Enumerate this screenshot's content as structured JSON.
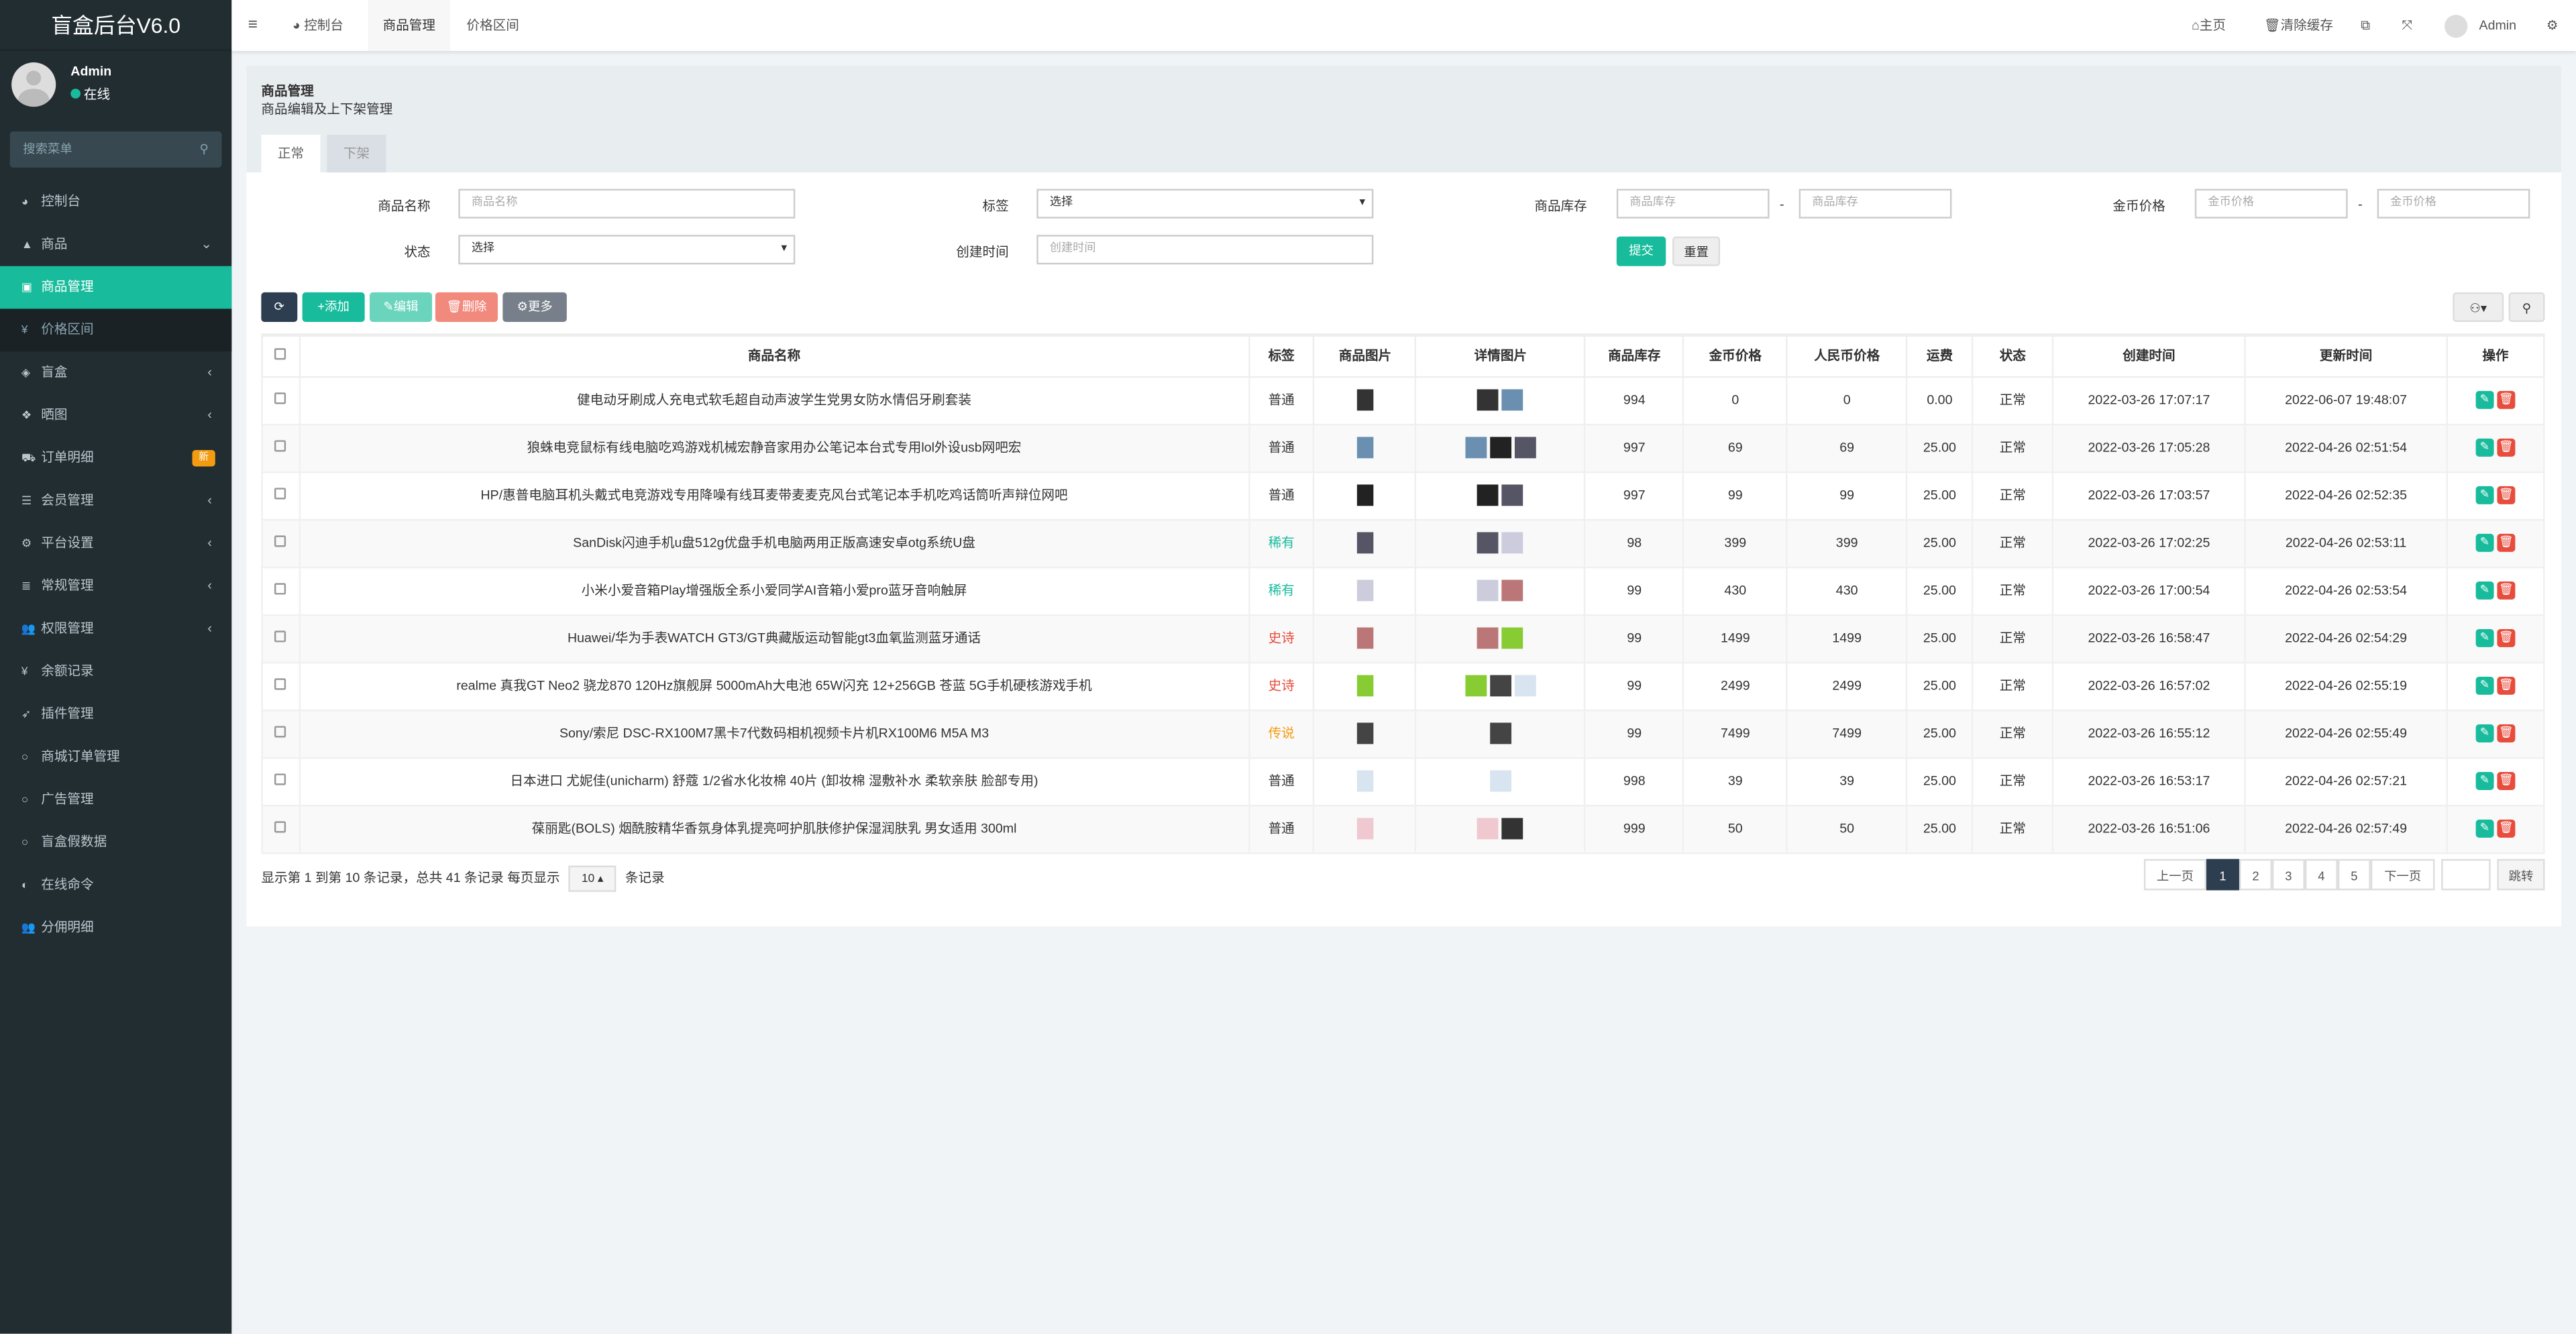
{
  "app": {
    "title": "盲盒后台V6.0",
    "user": "Admin",
    "status": "在线",
    "search_placeholder": "搜索菜单"
  },
  "sidebar": [
    {
      "icon": "dashboard-icon",
      "glyph": "◕",
      "label": "控制台"
    },
    {
      "icon": "shopping-bag-icon",
      "glyph": "▲",
      "label": "商品",
      "arrow": "⌄"
    },
    {
      "icon": "basket-icon",
      "glyph": "▣",
      "label": "商品管理",
      "active": true
    },
    {
      "icon": "yen-icon",
      "glyph": "¥",
      "label": "价格区间",
      "sub": true
    },
    {
      "icon": "cube-icon",
      "glyph": "◈",
      "label": "盲盒",
      "arrow": "‹"
    },
    {
      "icon": "dropbox-icon",
      "glyph": "❖",
      "label": "晒图",
      "arrow": "‹"
    },
    {
      "icon": "cart-icon",
      "glyph": "⛟",
      "label": "订单明细",
      "badge": "新"
    },
    {
      "icon": "list-icon",
      "glyph": "☰",
      "label": "会员管理",
      "arrow": "‹"
    },
    {
      "icon": "gear-icon",
      "glyph": "⚙",
      "label": "平台设置",
      "arrow": "‹"
    },
    {
      "icon": "database-icon",
      "glyph": "≣",
      "label": "常规管理",
      "arrow": "‹"
    },
    {
      "icon": "users-icon",
      "glyph": "👥",
      "label": "权限管理",
      "arrow": "‹"
    },
    {
      "icon": "yen-icon",
      "glyph": "¥",
      "label": "余额记录"
    },
    {
      "icon": "rocket-icon",
      "glyph": "➶",
      "label": "插件管理"
    },
    {
      "icon": "circle-icon",
      "glyph": "○",
      "label": "商城订单管理"
    },
    {
      "icon": "circle-icon",
      "glyph": "○",
      "label": "广告管理"
    },
    {
      "icon": "circle-icon",
      "glyph": "○",
      "label": "盲盒假数据"
    },
    {
      "icon": "adjust-icon",
      "glyph": "◐",
      "label": "在线命令"
    },
    {
      "icon": "users-icon",
      "glyph": "👥",
      "label": "分佣明细"
    }
  ],
  "header": {
    "tabs": [
      "控制台",
      "商品管理",
      "价格区间"
    ],
    "home": "主页",
    "clear_cache": "清除缓存",
    "user": "Admin"
  },
  "panel": {
    "title": "商品管理",
    "subtitle": "商品编辑及上下架管理",
    "tabs": [
      "正常",
      "下架"
    ]
  },
  "filters": {
    "name_label": "商品名称",
    "name_ph": "商品名称",
    "tag_label": "标签",
    "tag_value": "选择",
    "stock_label": "商品库存",
    "stock_ph": "商品库存",
    "gold_label": "金币价格",
    "gold_ph": "金币价格",
    "status_label": "状态",
    "status_value": "选择",
    "created_label": "创建时间",
    "created_ph": "创建时间",
    "submit": "提交",
    "reset": "重置",
    "dash": "-"
  },
  "toolbar": {
    "add": "添加",
    "edit": "编辑",
    "delete": "删除",
    "more": "更多"
  },
  "table": {
    "columns": [
      "商品名称",
      "标签",
      "商品图片",
      "详情图片",
      "商品库存",
      "金币价格",
      "人民币价格",
      "运费",
      "状态",
      "创建时间",
      "更新时间",
      "操作"
    ],
    "rows": [
      [
        "健电动牙刷成人充电式软毛超自动声波学生党男女防水情侣牙刷套装",
        "普通",
        "994",
        "0",
        "0",
        "0.00",
        "正常",
        "2022-03-26 17:07:17",
        "2022-06-07 19:48:07",
        2
      ],
      [
        "狼蛛电竞鼠标有线电脑吃鸡游戏机械宏静音家用办公笔记本台式专用lol外设usb网吧宏",
        "普通",
        "997",
        "69",
        "69",
        "25.00",
        "正常",
        "2022-03-26 17:05:28",
        "2022-04-26 02:51:54",
        3
      ],
      [
        "HP/惠普电脑耳机头戴式电竞游戏专用降噪有线耳麦带麦麦克风台式笔记本手机吃鸡话筒听声辩位网吧",
        "普通",
        "997",
        "99",
        "99",
        "25.00",
        "正常",
        "2022-03-26 17:03:57",
        "2022-04-26 02:52:35",
        2
      ],
      [
        "SanDisk闪迪手机u盘512g优盘手机电脑两用正版高速安卓otg系统U盘",
        "稀有",
        "98",
        "399",
        "399",
        "25.00",
        "正常",
        "2022-03-26 17:02:25",
        "2022-04-26 02:53:11",
        2
      ],
      [
        "小米小爱音箱Play增强版全系小爱同学AI音箱小爱pro蓝牙音响触屏",
        "稀有",
        "99",
        "430",
        "430",
        "25.00",
        "正常",
        "2022-03-26 17:00:54",
        "2022-04-26 02:53:54",
        2
      ],
      [
        "Huawei/华为手表WATCH GT3/GT典藏版运动智能gt3血氧监测蓝牙通话",
        "史诗",
        "99",
        "1499",
        "1499",
        "25.00",
        "正常",
        "2022-03-26 16:58:47",
        "2022-04-26 02:54:29",
        2
      ],
      [
        "realme 真我GT Neo2 骁龙870 120Hz旗舰屏 5000mAh大电池 65W闪充 12+256GB 苍蓝 5G手机硬核游戏手机",
        "史诗",
        "99",
        "2499",
        "2499",
        "25.00",
        "正常",
        "2022-03-26 16:57:02",
        "2022-04-26 02:55:19",
        3
      ],
      [
        "Sony/索尼 DSC-RX100M7黑卡7代数码相机视频卡片机RX100M6 M5A M3",
        "传说",
        "99",
        "7499",
        "7499",
        "25.00",
        "正常",
        "2022-03-26 16:55:12",
        "2022-04-26 02:55:49",
        1
      ],
      [
        "日本进口 尤妮佳(unicharm) 舒蔻 1/2省水化妆棉 40片 (卸妆棉 湿敷补水 柔软亲肤 脸部专用)",
        "普通",
        "998",
        "39",
        "39",
        "25.00",
        "正常",
        "2022-03-26 16:53:17",
        "2022-04-26 02:57:21",
        1
      ],
      [
        "葆丽匙(BOLS) 烟酰胺精华香氛身体乳提亮呵护肌肤修护保湿润肤乳 男女适用 300ml",
        "普通",
        "999",
        "50",
        "50",
        "25.00",
        "正常",
        "2022-03-26 16:51:06",
        "2022-04-26 02:57:49",
        2
      ]
    ]
  },
  "tag_colors": {
    "普通": "#333333",
    "稀有": "#18bc9c",
    "史诗": "#e74c3c",
    "传说": "#f39c12"
  },
  "footer": {
    "summary": "显示第 1 到第 10 条记录，总共 41 条记录 每页显示",
    "page_size": "10 ▴",
    "suffix": "条记录"
  },
  "pagination": {
    "prev": "上一页",
    "pages": [
      "1",
      "2",
      "3",
      "4",
      "5"
    ],
    "current": "1",
    "next": "下一页",
    "jump": "跳转"
  },
  "colors": {
    "accent": "#18bc9c",
    "sidebar": "#222d32",
    "danger": "#e74c3c"
  }
}
